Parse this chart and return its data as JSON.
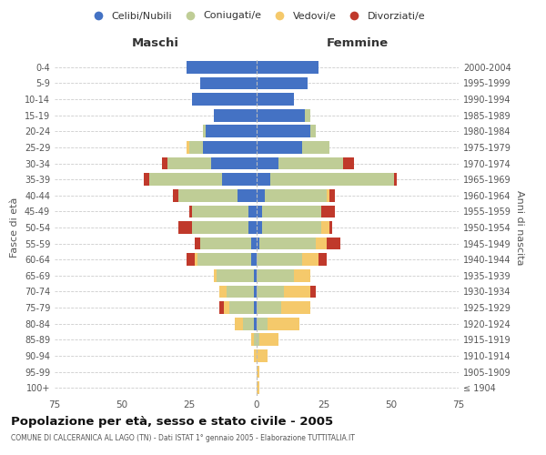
{
  "age_groups": [
    "100+",
    "95-99",
    "90-94",
    "85-89",
    "80-84",
    "75-79",
    "70-74",
    "65-69",
    "60-64",
    "55-59",
    "50-54",
    "45-49",
    "40-44",
    "35-39",
    "30-34",
    "25-29",
    "20-24",
    "15-19",
    "10-14",
    "5-9",
    "0-4"
  ],
  "birth_years": [
    "≤ 1904",
    "1905-1909",
    "1910-1914",
    "1915-1919",
    "1920-1924",
    "1925-1929",
    "1930-1934",
    "1935-1939",
    "1940-1944",
    "1945-1949",
    "1950-1954",
    "1955-1959",
    "1960-1964",
    "1965-1969",
    "1970-1974",
    "1975-1979",
    "1980-1984",
    "1985-1989",
    "1990-1994",
    "1995-1999",
    "2000-2004"
  ],
  "males": {
    "celibi": [
      0,
      0,
      0,
      0,
      1,
      1,
      1,
      1,
      2,
      2,
      3,
      3,
      7,
      13,
      17,
      20,
      19,
      16,
      24,
      21,
      26
    ],
    "coniugati": [
      0,
      0,
      0,
      1,
      4,
      9,
      10,
      14,
      20,
      19,
      21,
      21,
      22,
      27,
      16,
      5,
      1,
      0,
      0,
      0,
      0
    ],
    "vedovi": [
      0,
      0,
      1,
      1,
      3,
      2,
      3,
      1,
      1,
      0,
      0,
      0,
      0,
      0,
      0,
      1,
      0,
      0,
      0,
      0,
      0
    ],
    "divorziati": [
      0,
      0,
      0,
      0,
      0,
      2,
      0,
      0,
      3,
      2,
      5,
      1,
      2,
      2,
      2,
      0,
      0,
      0,
      0,
      0,
      0
    ]
  },
  "females": {
    "nubili": [
      0,
      0,
      0,
      0,
      0,
      0,
      0,
      0,
      0,
      1,
      2,
      2,
      3,
      5,
      8,
      17,
      20,
      18,
      14,
      19,
      23
    ],
    "coniugate": [
      0,
      0,
      0,
      1,
      4,
      9,
      10,
      14,
      17,
      21,
      22,
      22,
      23,
      46,
      24,
      10,
      2,
      2,
      0,
      0,
      0
    ],
    "vedove": [
      1,
      1,
      4,
      7,
      12,
      11,
      10,
      6,
      6,
      4,
      3,
      0,
      1,
      0,
      0,
      0,
      0,
      0,
      0,
      0,
      0
    ],
    "divorziate": [
      0,
      0,
      0,
      0,
      0,
      0,
      2,
      0,
      3,
      5,
      1,
      5,
      2,
      1,
      4,
      0,
      0,
      0,
      0,
      0,
      0
    ]
  },
  "colors": {
    "celibi": "#4472C4",
    "coniugati": "#BFCD96",
    "vedovi": "#F5C96B",
    "divorziati": "#C0392B"
  },
  "xlim": 75,
  "title": "Popolazione per età, sesso e stato civile - 2005",
  "subtitle": "COMUNE DI CALCERANICA AL LAGO (TN) - Dati ISTAT 1° gennaio 2005 - Elaborazione TUTTITALIA.IT",
  "xlabel_left": "Maschi",
  "xlabel_right": "Femmine",
  "ylabel_left": "Fasce di età",
  "ylabel_right": "Anni di nascita",
  "legend_labels": [
    "Celibi/Nubili",
    "Coniugati/e",
    "Vedovi/e",
    "Divorziati/e"
  ],
  "bg_color": "#FFFFFF",
  "grid_color": "#CCCCCC"
}
